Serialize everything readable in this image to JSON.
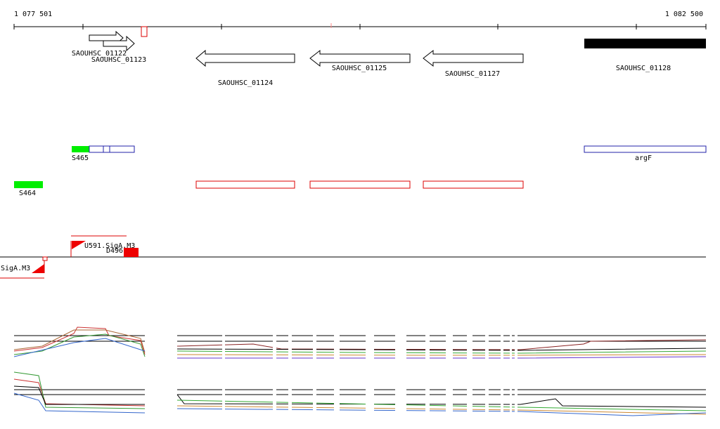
{
  "ruler": {
    "start": "1 077 501",
    "end": "1 082 500"
  },
  "genes": [
    "SAOUHSC_01122",
    "SAOUHSC_01123",
    "SAOUHSC_01124",
    "SAOUHSC_01125",
    "SAOUHSC_01127",
    "SAOUHSC_01128"
  ],
  "features": [
    "S465",
    "argF",
    "S464"
  ],
  "promoters": [
    "U591.SigA.M3",
    "D496",
    "SigA.M3"
  ]
}
